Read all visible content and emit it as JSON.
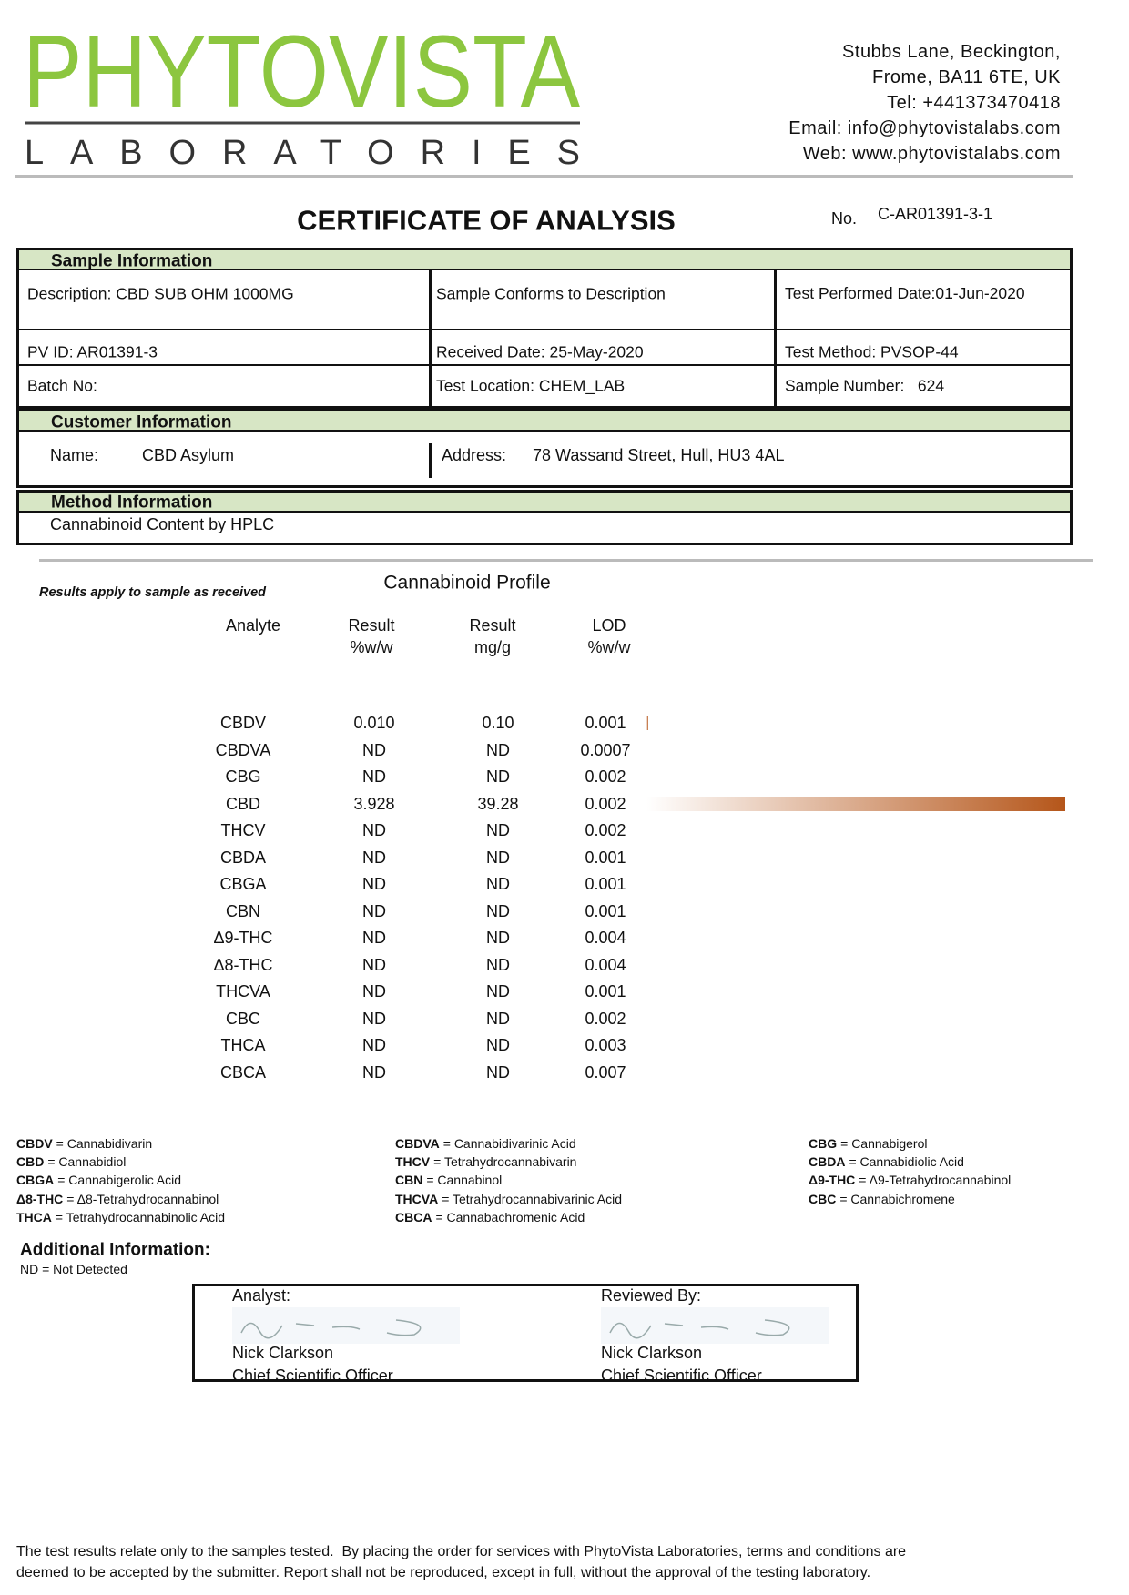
{
  "header": {
    "logo_name": "PHYTOVISTA",
    "logo_sub": "LABORATORIES",
    "address": [
      "Stubbs Lane, Beckington,",
      "Frome, BA11 6TE, UK",
      "Tel: +441373470418",
      "Email: info@phytovistalabs.com",
      "Web: www.phytovistalabs.com"
    ]
  },
  "title": "CERTIFICATE OF ANALYSIS",
  "certificate_no_label": "No.",
  "certificate_no": "C-AR01391-3-1",
  "sample_information": {
    "heading": "Sample Information",
    "rows": [
      [
        "Description: CBD SUB OHM 1000MG",
        "Sample Conforms to Description",
        "Test Performed Date:01-Jun-2020"
      ],
      [
        "PV ID: AR01391-3",
        "Received Date: 25-May-2020",
        "Test Method: PVSOP-44"
      ],
      [
        "Batch No:",
        "Test Location: CHEM_LAB",
        "Sample Number:   624"
      ]
    ]
  },
  "customer_information": {
    "heading": "Customer Information",
    "name_label": "Name:",
    "name": "CBD Asylum",
    "address_label": "Address:",
    "address": "78 Wassand Street, Hull, HU3 4AL"
  },
  "method_information": {
    "heading": "Method Information",
    "method": "Cannabinoid Content by HPLC"
  },
  "profile": {
    "note": "Results apply to sample as received",
    "title": "Cannabinoid Profile",
    "columns": [
      [
        "Analyte"
      ],
      [
        "Result",
        "%w/w"
      ],
      [
        "Result",
        "mg/g"
      ],
      [
        "LOD",
        "%w/w"
      ]
    ],
    "rows": [
      [
        "CBDV",
        "0.010",
        "0.10",
        "0.001"
      ],
      [
        "CBDVA",
        "ND",
        "ND",
        "0.0007"
      ],
      [
        "CBG",
        "ND",
        "ND",
        "0.002"
      ],
      [
        "CBD",
        "3.928",
        "39.28",
        "0.002"
      ],
      [
        "THCV",
        "ND",
        "ND",
        "0.002"
      ],
      [
        "CBDA",
        "ND",
        "ND",
        "0.001"
      ],
      [
        "CBGA",
        "ND",
        "ND",
        "0.001"
      ],
      [
        "CBN",
        "ND",
        "ND",
        "0.001"
      ],
      [
        "Δ9-THC",
        "ND",
        "ND",
        "0.004"
      ],
      [
        "Δ8-THC",
        "ND",
        "ND",
        "0.004"
      ],
      [
        "THCVA",
        "ND",
        "ND",
        "0.001"
      ],
      [
        "CBC",
        "ND",
        "ND",
        "0.002"
      ],
      [
        "THCA",
        "ND",
        "ND",
        "0.003"
      ],
      [
        "CBCA",
        "ND",
        "ND",
        "0.007"
      ]
    ]
  },
  "abbreviations": [
    [
      {
        "term": "CBDV",
        "definition": "= Cannabidivarin"
      },
      {
        "term": "CBD",
        "definition": "= Cannabidiol"
      },
      {
        "term": "CBGA",
        "definition": "= Cannabigerolic Acid"
      },
      {
        "term": "Δ8-THC",
        "definition": "= Δ8-Tetrahydrocannabinol"
      },
      {
        "term": "THCA",
        "definition": "= Tetrahydrocannabinolic Acid"
      }
    ],
    [
      {
        "term": "CBDVA",
        "definition": "= Cannabidivarinic Acid"
      },
      {
        "term": "THCV",
        "definition": "= Tetrahydrocannabivarin"
      },
      {
        "term": "CBN",
        "definition": "= Cannabinol"
      },
      {
        "term": "THCVA",
        "definition": "= Tetrahydrocannabivarinic Acid"
      },
      {
        "term": "CBCA",
        "definition": "= Cannabachromenic Acid"
      }
    ],
    [
      {
        "term": "CBG",
        "definition": "= Cannabigerol"
      },
      {
        "term": "CBDA",
        "definition": "= Cannabidiolic Acid"
      },
      {
        "term": "Δ9-THC",
        "definition": "= Δ9-Tetrahydrocannabinol"
      },
      {
        "term": "CBC",
        "definition": "= Cannabichromene"
      }
    ]
  ],
  "additional_information": {
    "heading": "Additional Information:",
    "note": "ND = Not Detected"
  },
  "signatures": [
    {
      "label": "Analyst:",
      "name": "Nick Clarkson",
      "role": "Chief Scientific Officer"
    },
    {
      "label": "Reviewed By:",
      "name": "Nick Clarkson",
      "role": "Chief Scientific Officer"
    }
  ],
  "footer": [
    "The test results relate only to the samples tested.  By placing the order for services with PhytoVista Laboratories, terms and conditions are",
    "deemed to be accepted by the submitter. Report shall not be reproduced, except in full, without the approval of the testing laboratory."
  ]
}
